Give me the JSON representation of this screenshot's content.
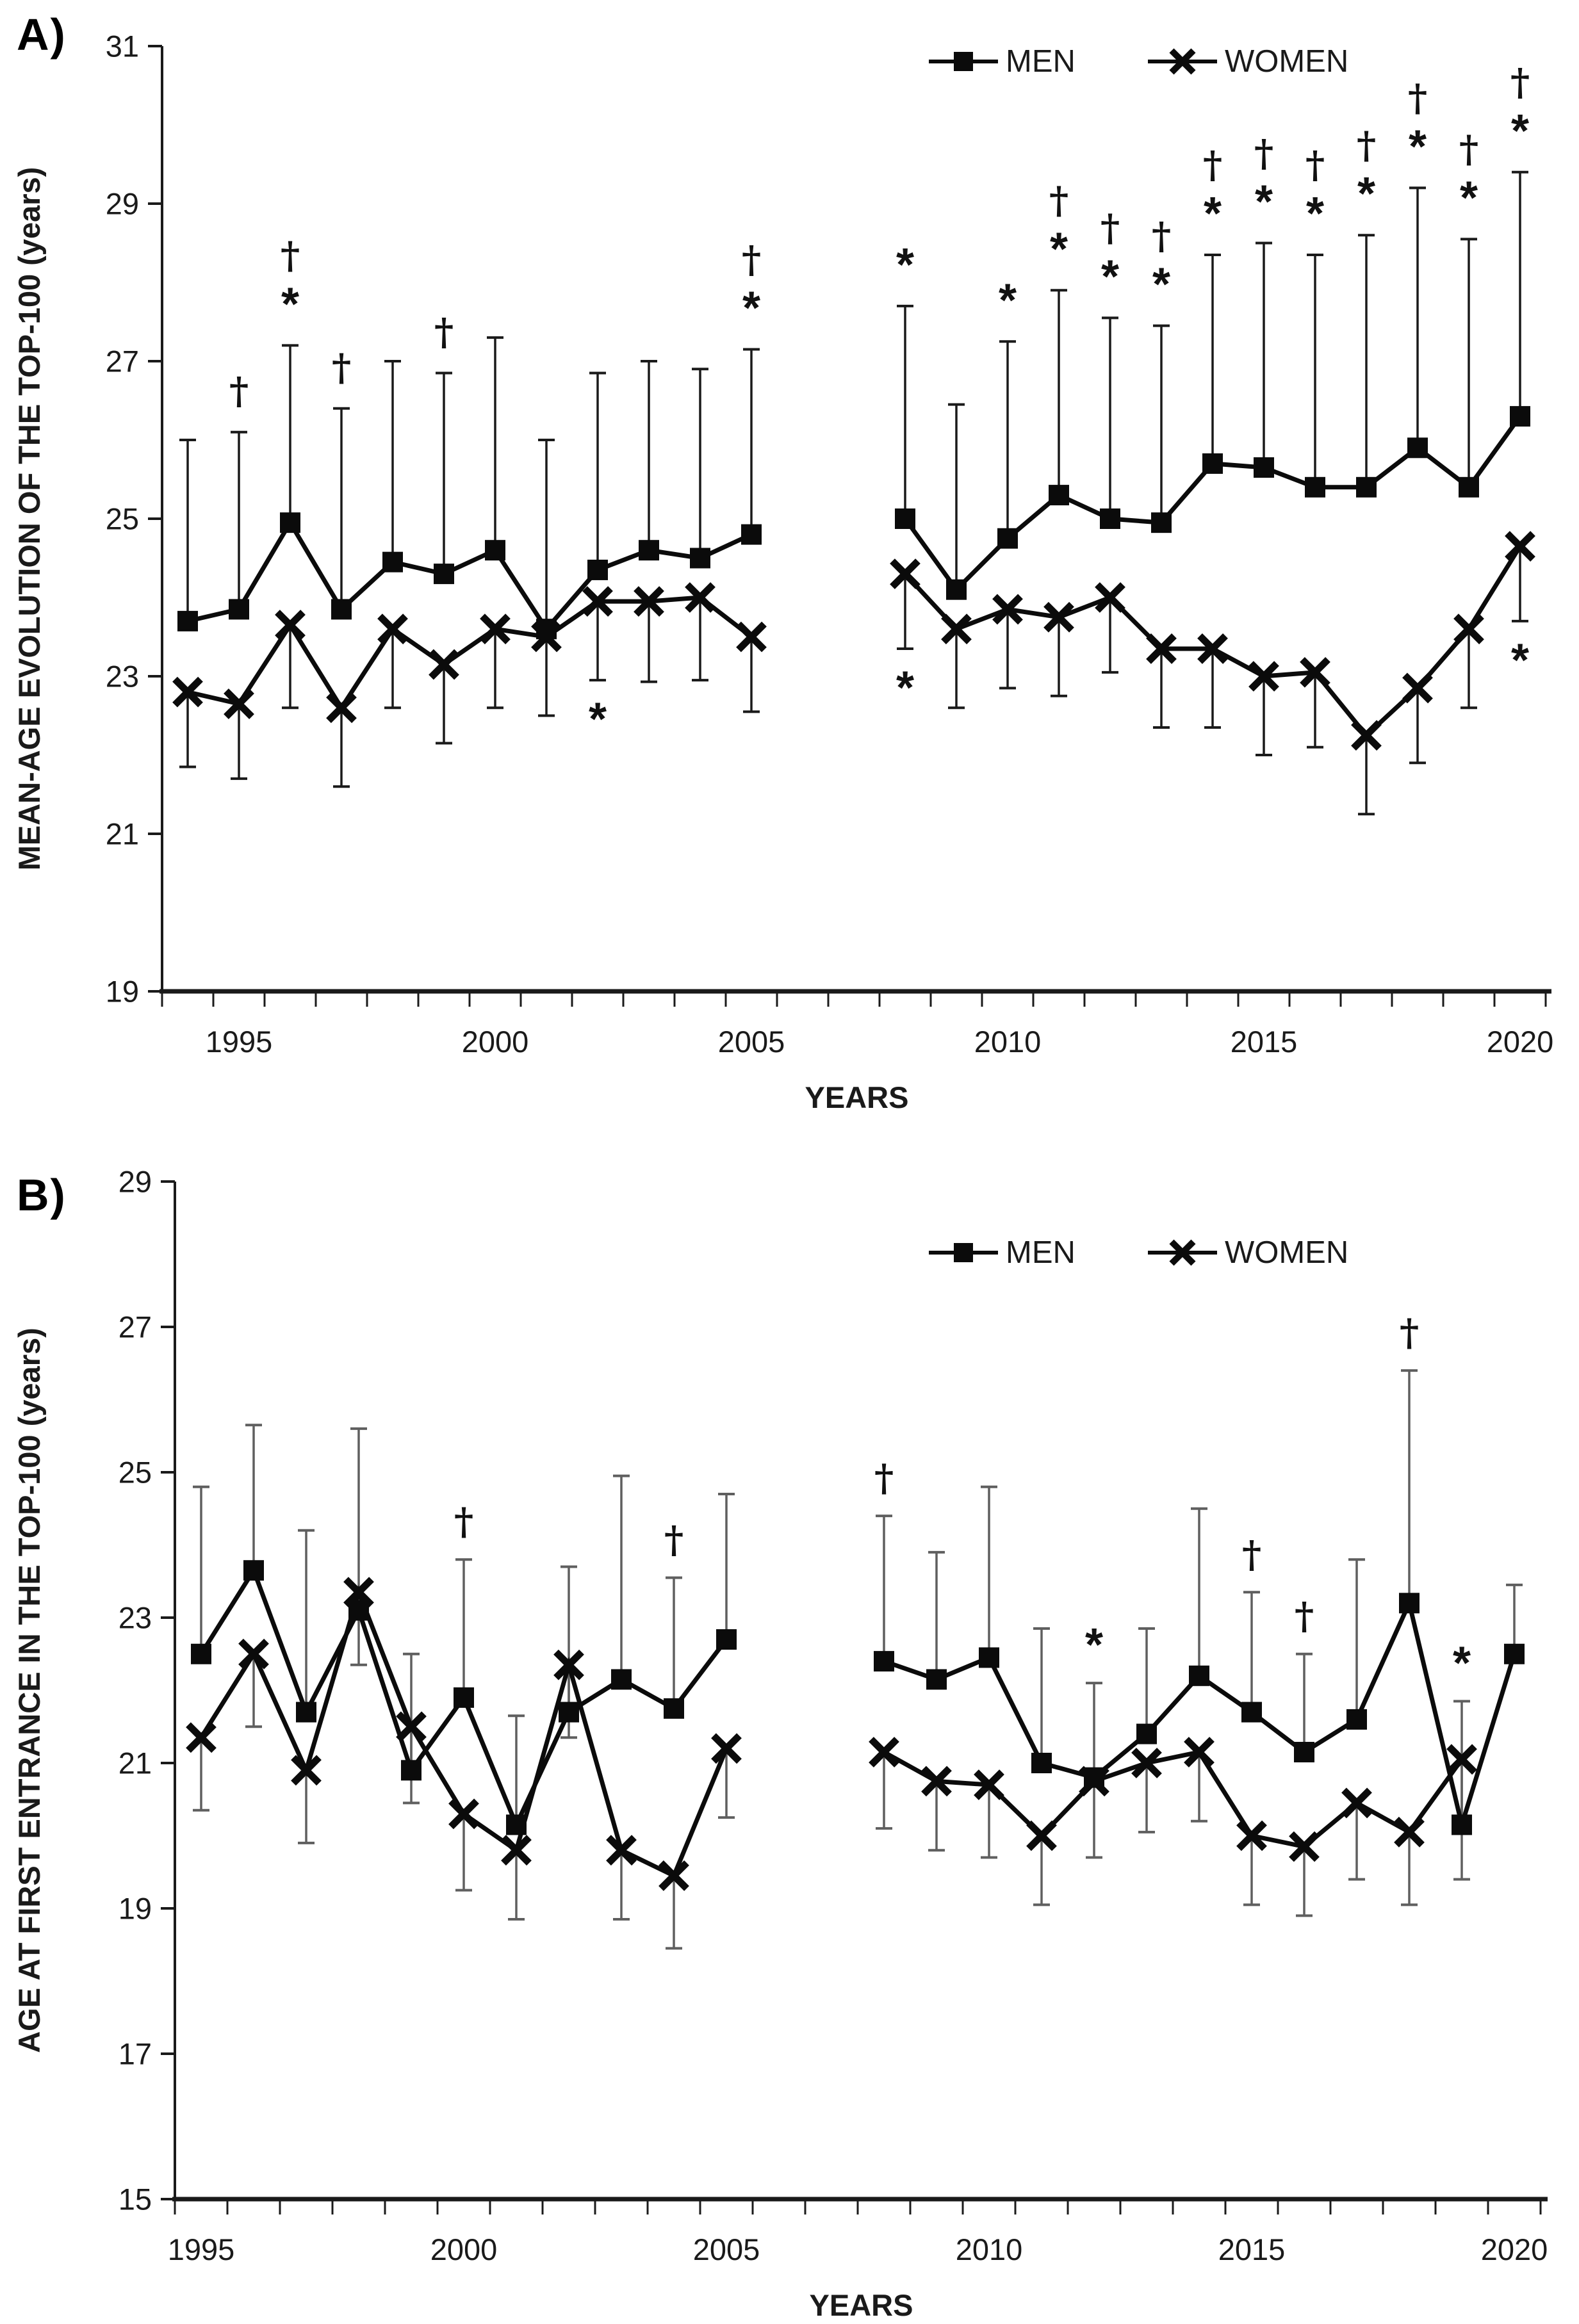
{
  "chart_data": [
    {
      "type": "line",
      "panel_label": "A)",
      "title": "",
      "xlabel": "YEARS",
      "ylabel": "MEAN-AGE EVOLUTION OF THE TOP-100 (years)",
      "ylim": [
        19,
        31
      ],
      "yticks": [
        19,
        21,
        23,
        25,
        27,
        29,
        31
      ],
      "xticks": [
        1995,
        2000,
        2005,
        2010,
        2015,
        2020
      ],
      "grid": false,
      "legend_position": "top-center-right",
      "x": [
        1994,
        1995,
        1996,
        1997,
        1998,
        1999,
        2000,
        2001,
        2002,
        2003,
        2004,
        2005,
        2008,
        2009,
        2010,
        2011,
        2012,
        2013,
        2014,
        2015,
        2016,
        2017,
        2018,
        2019,
        2020
      ],
      "series": [
        {
          "name": "MEN",
          "marker": "square",
          "error_direction": "up",
          "values": [
            23.7,
            23.85,
            24.95,
            23.85,
            24.45,
            24.3,
            24.6,
            23.6,
            24.35,
            24.6,
            24.5,
            24.8,
            25.0,
            24.1,
            24.75,
            25.3,
            25.0,
            24.95,
            25.7,
            25.65,
            25.4,
            25.4,
            25.9,
            25.4,
            26.3
          ],
          "error_ends": [
            26.0,
            26.1,
            27.2,
            26.4,
            27.0,
            26.85,
            27.3,
            26.0,
            26.85,
            27.0,
            26.9,
            27.15,
            27.7,
            26.45,
            27.25,
            27.9,
            27.55,
            27.45,
            28.35,
            28.5,
            28.35,
            28.6,
            29.2,
            28.55,
            29.4
          ]
        },
        {
          "name": "WOMEN",
          "marker": "x",
          "error_direction": "down",
          "values": [
            22.8,
            22.65,
            23.65,
            22.6,
            23.6,
            23.15,
            23.6,
            23.5,
            23.95,
            23.95,
            24.0,
            23.5,
            24.3,
            23.6,
            23.85,
            23.75,
            24.0,
            23.35,
            23.35,
            23.0,
            23.05,
            22.25,
            22.85,
            23.6,
            24.65
          ],
          "error_ends": [
            21.85,
            21.7,
            22.6,
            21.6,
            22.6,
            22.15,
            22.6,
            22.5,
            22.95,
            22.93,
            22.95,
            22.55,
            23.35,
            22.6,
            22.85,
            22.75,
            23.05,
            22.35,
            22.35,
            22.0,
            22.1,
            21.25,
            21.9,
            22.6,
            23.7
          ]
        }
      ],
      "annotations": {
        "dagger_above_years": [
          1995,
          1996,
          1997,
          1999,
          2005,
          2011,
          2012,
          2013,
          2014,
          2015,
          2016,
          2017,
          2018,
          2019,
          2020
        ],
        "star_above_years": [
          1996,
          2005,
          2008,
          2010,
          2011,
          2012,
          2013,
          2014,
          2015,
          2016,
          2017,
          2018,
          2019,
          2020
        ],
        "star_below_women_years": [
          2002,
          2008,
          2020
        ]
      },
      "symbols": {
        "dagger": "†",
        "star": "*"
      }
    },
    {
      "type": "line",
      "panel_label": "B)",
      "title": "",
      "xlabel": "YEARS",
      "ylabel": "AGE AT FIRST ENTRANCE IN THE TOP-100 (years)",
      "ylim": [
        15,
        29
      ],
      "yticks": [
        15,
        17,
        19,
        21,
        23,
        25,
        27,
        29
      ],
      "xticks": [
        1995,
        2000,
        2005,
        2010,
        2015,
        2020
      ],
      "grid": false,
      "legend_position": "top-center-right",
      "x": [
        1995,
        1996,
        1997,
        1998,
        1999,
        2000,
        2001,
        2002,
        2003,
        2004,
        2005,
        2008,
        2009,
        2010,
        2011,
        2012,
        2013,
        2014,
        2015,
        2016,
        2017,
        2018,
        2019,
        2020
      ],
      "series": [
        {
          "name": "MEN",
          "marker": "square",
          "error_direction": "up",
          "values": [
            22.5,
            23.65,
            21.7,
            23.1,
            20.9,
            21.9,
            20.15,
            21.7,
            22.15,
            21.75,
            22.7,
            22.4,
            22.15,
            22.45,
            21.0,
            20.8,
            21.4,
            22.2,
            21.7,
            21.15,
            21.6,
            23.2,
            20.15,
            22.5
          ],
          "error_ends": [
            24.8,
            25.65,
            24.2,
            25.6,
            22.5,
            23.8,
            21.65,
            23.7,
            24.95,
            23.55,
            24.7,
            24.4,
            23.9,
            24.8,
            22.85,
            22.1,
            22.85,
            24.5,
            23.35,
            22.5,
            23.8,
            26.4,
            21.85,
            23.45
          ]
        },
        {
          "name": "WOMEN",
          "marker": "x",
          "error_direction": "down",
          "values": [
            21.35,
            22.5,
            20.9,
            23.35,
            21.5,
            20.3,
            19.8,
            22.35,
            19.8,
            19.45,
            21.2,
            21.15,
            20.75,
            20.7,
            20.0,
            20.75,
            21.0,
            21.15,
            20.0,
            19.85,
            20.45,
            20.05,
            21.05,
            null
          ],
          "error_ends": [
            20.35,
            21.5,
            19.9,
            22.35,
            20.45,
            19.25,
            18.85,
            21.35,
            18.85,
            18.45,
            20.25,
            20.1,
            19.8,
            19.7,
            19.05,
            19.7,
            20.05,
            20.2,
            19.05,
            18.9,
            19.4,
            19.05,
            19.4,
            null
          ]
        }
      ],
      "annotations": {
        "dagger_above_years": [
          2000,
          2004,
          2008,
          2015,
          2016,
          2018
        ],
        "star_above_years": [
          2012,
          2019
        ],
        "star_below_women_years": []
      },
      "symbols": {
        "dagger": "†",
        "star": "*"
      }
    }
  ],
  "colors": {
    "series": "#0b0b0b",
    "error_bar_panel_a": "#1a1a1a",
    "error_bar_panel_b": "#5f5f5f",
    "text": "#1a1a1a"
  }
}
